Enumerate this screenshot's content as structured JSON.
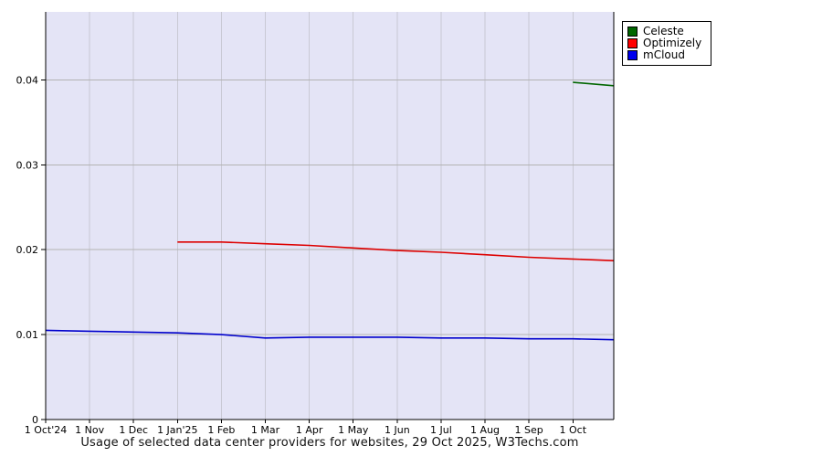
{
  "title": "Usage of selected data center providers for websites, 29 Oct 2025, W3Techs.com",
  "legend": {
    "items": [
      {
        "label": "Celeste",
        "color": "#006600"
      },
      {
        "label": "Optimizely",
        "color": "#ff0000"
      },
      {
        "label": "mCloud",
        "color": "#0000ee"
      }
    ]
  },
  "colors": {
    "page_bg": "#ffffff",
    "plot_bg": "#e4e4f6",
    "grid_horizontal": "#b3b3b3",
    "grid_vertical": "#c9c9d4",
    "axis": "#000000",
    "tick": "#000000",
    "label_text": "#000000",
    "title_text": "#111111"
  },
  "chart_data": {
    "type": "line",
    "title": "Usage of selected data center providers for websites, 29 Oct 2025, W3Techs.com",
    "xlabel": "",
    "ylabel": "",
    "x_unit": "months since 1 Oct 2024",
    "xlim": [
      0,
      12.93
    ],
    "ylim": [
      0,
      0.048
    ],
    "grid": true,
    "legend_position": "top-right-outside",
    "x_ticks": [
      0,
      1,
      2,
      3,
      4,
      5,
      6,
      7,
      8,
      9,
      10,
      11,
      12
    ],
    "x_tick_labels": [
      "1 Oct'24",
      "1 Nov",
      "1 Dec",
      "1 Jan'25",
      "1 Feb",
      "1 Mar",
      "1 Apr",
      "1 May",
      "1 Jun",
      "1 Jul",
      "1 Aug",
      "1 Sep",
      "1 Oct"
    ],
    "y_ticks": [
      0,
      0.01,
      0.02,
      0.03,
      0.04
    ],
    "y_tick_labels": [
      "0",
      "0.01",
      "0.02",
      "0.03",
      "0.04"
    ],
    "series": [
      {
        "name": "Celeste",
        "color": "#006600",
        "x": [
          12,
          12.93
        ],
        "y": [
          0.0397,
          0.0393
        ]
      },
      {
        "name": "Optimizely",
        "color": "#dd0000",
        "x": [
          3,
          4,
          5,
          6,
          7,
          8,
          9,
          10,
          11,
          12,
          12.93
        ],
        "y": [
          0.0209,
          0.0209,
          0.0207,
          0.0205,
          0.0202,
          0.0199,
          0.0197,
          0.0194,
          0.0191,
          0.0189,
          0.0187
        ]
      },
      {
        "name": "mCloud",
        "color": "#0000cc",
        "x": [
          0,
          1,
          2,
          3,
          4,
          5,
          6,
          7,
          8,
          9,
          10,
          11,
          12,
          12.93
        ],
        "y": [
          0.0105,
          0.0104,
          0.0103,
          0.0102,
          0.01,
          0.0096,
          0.0097,
          0.0097,
          0.0097,
          0.0096,
          0.0096,
          0.0095,
          0.0095,
          0.0094
        ]
      }
    ]
  }
}
